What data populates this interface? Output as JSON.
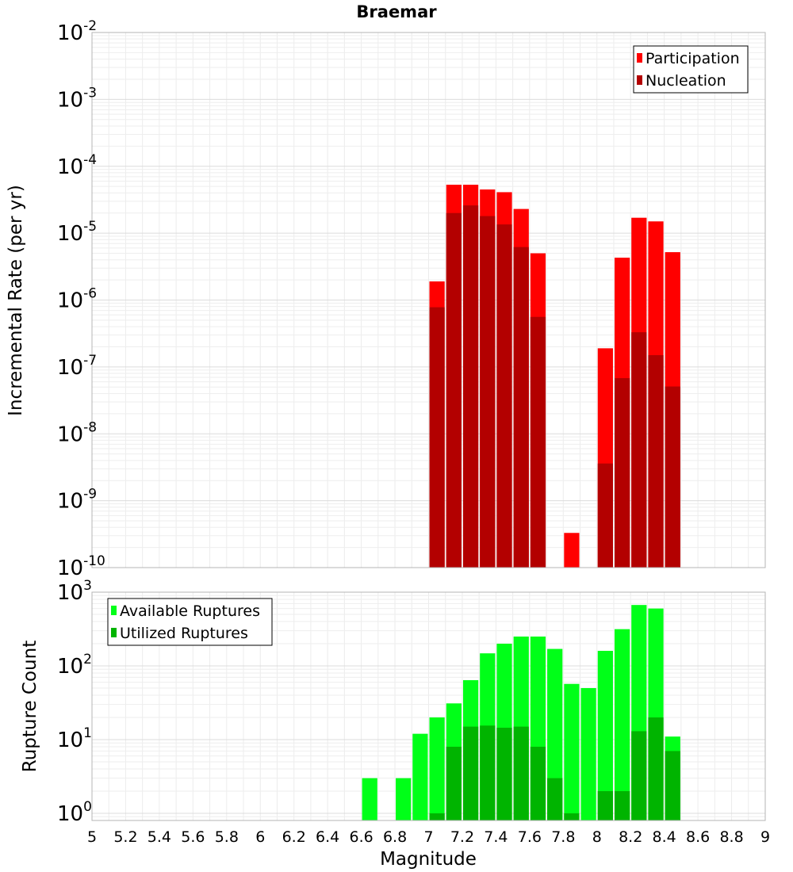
{
  "chart_data": [
    {
      "type": "bar",
      "title": "Braemar",
      "xlabel": "",
      "ylabel": "Incremental Rate (per yr)",
      "yscale": "log",
      "xlim": [
        5,
        9
      ],
      "ylim": [
        1e-10,
        0.01
      ],
      "grid": true,
      "legend_position": "top-right",
      "y_tick_labels": [
        {
          "base": "10",
          "exp": "-10"
        },
        {
          "base": "10",
          "exp": "-9"
        },
        {
          "base": "10",
          "exp": "-8"
        },
        {
          "base": "10",
          "exp": "-7"
        },
        {
          "base": "10",
          "exp": "-6"
        },
        {
          "base": "10",
          "exp": "-5"
        },
        {
          "base": "10",
          "exp": "-4"
        },
        {
          "base": "10",
          "exp": "-3"
        },
        {
          "base": "10",
          "exp": "-2"
        }
      ],
      "series": [
        {
          "name": "Participation",
          "color": "#ff0000",
          "points": [
            {
              "x": 7.05,
              "y": 1.9e-06
            },
            {
              "x": 7.15,
              "y": 5.3e-05
            },
            {
              "x": 7.25,
              "y": 5.3e-05
            },
            {
              "x": 7.35,
              "y": 4.5e-05
            },
            {
              "x": 7.45,
              "y": 4.1e-05
            },
            {
              "x": 7.55,
              "y": 2.3e-05
            },
            {
              "x": 7.65,
              "y": 5e-06
            },
            {
              "x": 7.85,
              "y": 3.3e-10
            },
            {
              "x": 8.05,
              "y": 1.9e-07
            },
            {
              "x": 8.15,
              "y": 4.3e-06
            },
            {
              "x": 8.25,
              "y": 1.7e-05
            },
            {
              "x": 8.35,
              "y": 1.5e-05
            },
            {
              "x": 8.45,
              "y": 5.2e-06
            }
          ]
        },
        {
          "name": "Nucleation",
          "color": "#b30000",
          "points": [
            {
              "x": 7.05,
              "y": 7.8e-07
            },
            {
              "x": 7.15,
              "y": 2e-05
            },
            {
              "x": 7.25,
              "y": 2.6e-05
            },
            {
              "x": 7.35,
              "y": 1.8e-05
            },
            {
              "x": 7.45,
              "y": 1.35e-05
            },
            {
              "x": 7.55,
              "y": 6.2e-06
            },
            {
              "x": 7.65,
              "y": 5.6e-07
            },
            {
              "x": 8.05,
              "y": 3.6e-09
            },
            {
              "x": 8.15,
              "y": 6.8e-08
            },
            {
              "x": 8.25,
              "y": 3.3e-07
            },
            {
              "x": 8.35,
              "y": 1.5e-07
            },
            {
              "x": 8.45,
              "y": 5.1e-08
            }
          ]
        }
      ]
    },
    {
      "type": "bar",
      "title": "",
      "xlabel": "Magnitude",
      "ylabel": "Rupture Count",
      "yscale": "log",
      "xlim": [
        5,
        9
      ],
      "ylim": [
        0.8,
        1000
      ],
      "grid": true,
      "legend_position": "top-left",
      "x_tick_labels": [
        "5",
        "5.2",
        "5.4",
        "5.6",
        "5.8",
        "6",
        "6.2",
        "6.4",
        "6.6",
        "6.8",
        "7",
        "7.2",
        "7.4",
        "7.6",
        "7.8",
        "8",
        "8.2",
        "8.4",
        "8.6",
        "8.8",
        "9"
      ],
      "y_tick_labels": [
        {
          "base": "10",
          "exp": "0"
        },
        {
          "base": "10",
          "exp": "1"
        },
        {
          "base": "10",
          "exp": "2"
        },
        {
          "base": "10",
          "exp": "3"
        }
      ],
      "series": [
        {
          "name": "Available Ruptures",
          "color": "#00ff18",
          "points": [
            {
              "x": 6.65,
              "y": 3
            },
            {
              "x": 6.85,
              "y": 3
            },
            {
              "x": 6.95,
              "y": 12
            },
            {
              "x": 7.05,
              "y": 20
            },
            {
              "x": 7.15,
              "y": 31
            },
            {
              "x": 7.25,
              "y": 64
            },
            {
              "x": 7.35,
              "y": 148
            },
            {
              "x": 7.45,
              "y": 200
            },
            {
              "x": 7.55,
              "y": 250
            },
            {
              "x": 7.65,
              "y": 250
            },
            {
              "x": 7.75,
              "y": 170
            },
            {
              "x": 7.85,
              "y": 57
            },
            {
              "x": 7.95,
              "y": 50
            },
            {
              "x": 8.05,
              "y": 160
            },
            {
              "x": 8.15,
              "y": 315
            },
            {
              "x": 8.25,
              "y": 670
            },
            {
              "x": 8.35,
              "y": 600
            },
            {
              "x": 8.45,
              "y": 11
            }
          ]
        },
        {
          "name": "Utilized Ruptures",
          "color": "#00b400",
          "points": [
            {
              "x": 7.05,
              "y": 1
            },
            {
              "x": 7.15,
              "y": 8
            },
            {
              "x": 7.25,
              "y": 15
            },
            {
              "x": 7.35,
              "y": 15.5
            },
            {
              "x": 7.45,
              "y": 14.5
            },
            {
              "x": 7.55,
              "y": 15
            },
            {
              "x": 7.65,
              "y": 8
            },
            {
              "x": 7.75,
              "y": 3
            },
            {
              "x": 7.85,
              "y": 1
            },
            {
              "x": 8.05,
              "y": 2
            },
            {
              "x": 8.15,
              "y": 2
            },
            {
              "x": 8.25,
              "y": 13
            },
            {
              "x": 8.35,
              "y": 20
            },
            {
              "x": 8.45,
              "y": 7
            }
          ]
        }
      ]
    }
  ]
}
